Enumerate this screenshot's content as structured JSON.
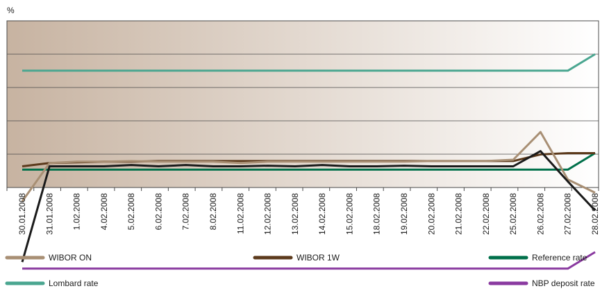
{
  "chart_data": {
    "type": "line",
    "title": "",
    "unit_label": "%",
    "ylim": [
      4.5,
      7.0
    ],
    "grid": true,
    "legend_position": "bottom",
    "categories": [
      "30.01.2008",
      "31.01.2008",
      "1.02.2008",
      "4.02.2008",
      "5.02.2008",
      "6.02.2008",
      "7.02.2008",
      "8.02.2008",
      "11.02.2008",
      "12.02.2008",
      "13.02.2008",
      "14.02.2008",
      "15.02.2008",
      "18.02.2008",
      "19.02.2008",
      "20.02.2008",
      "21.02.2008",
      "22.02.2008",
      "25.02.2008",
      "26.02.2008",
      "27.02.2008",
      "28.02.2008"
    ],
    "series": [
      {
        "name": "WIBOR ON",
        "color": "#a88f74",
        "values": [
          4.77,
          5.35,
          5.37,
          5.37,
          5.38,
          5.37,
          5.37,
          5.37,
          5.35,
          5.37,
          5.37,
          5.37,
          5.37,
          5.37,
          5.37,
          5.38,
          5.38,
          5.38,
          5.4,
          5.82,
          5.1,
          4.9
        ]
      },
      {
        "name": "WIBOR 1W",
        "color": "#5c3a1c",
        "values": [
          5.3,
          5.35,
          5.36,
          5.37,
          5.37,
          5.38,
          5.38,
          5.38,
          5.38,
          5.38,
          5.38,
          5.38,
          5.38,
          5.38,
          5.38,
          5.38,
          5.38,
          5.38,
          5.38,
          5.48,
          5.5,
          5.5
        ]
      },
      {
        "name": "Reference rate",
        "color": "#00704a",
        "values": [
          5.25,
          5.25,
          5.25,
          5.25,
          5.25,
          5.25,
          5.25,
          5.25,
          5.25,
          5.25,
          5.25,
          5.25,
          5.25,
          5.25,
          5.25,
          5.25,
          5.25,
          5.25,
          5.25,
          5.25,
          5.25,
          5.5
        ]
      },
      {
        "name": "Lombard rate",
        "color": "#4aa690",
        "values": [
          6.75,
          6.75,
          6.75,
          6.75,
          6.75,
          6.75,
          6.75,
          6.75,
          6.75,
          6.75,
          6.75,
          6.75,
          6.75,
          6.75,
          6.75,
          6.75,
          6.75,
          6.75,
          6.75,
          6.75,
          6.75,
          7.0
        ]
      },
      {
        "name": "NBP deposit rate",
        "color": "#8a3aa0",
        "values": [
          3.75,
          3.75,
          3.75,
          3.75,
          3.75,
          3.75,
          3.75,
          3.75,
          3.75,
          3.75,
          3.75,
          3.75,
          3.75,
          3.75,
          3.75,
          3.75,
          3.75,
          3.75,
          3.75,
          3.75,
          3.75,
          4.0
        ]
      },
      {
        "name": "",
        "color": "#1a1a1a",
        "values": [
          3.85,
          5.3,
          5.3,
          5.3,
          5.32,
          5.3,
          5.32,
          5.3,
          5.3,
          5.31,
          5.3,
          5.32,
          5.3,
          5.3,
          5.31,
          5.3,
          5.3,
          5.3,
          5.3,
          5.53,
          5.07,
          4.63
        ]
      }
    ]
  }
}
